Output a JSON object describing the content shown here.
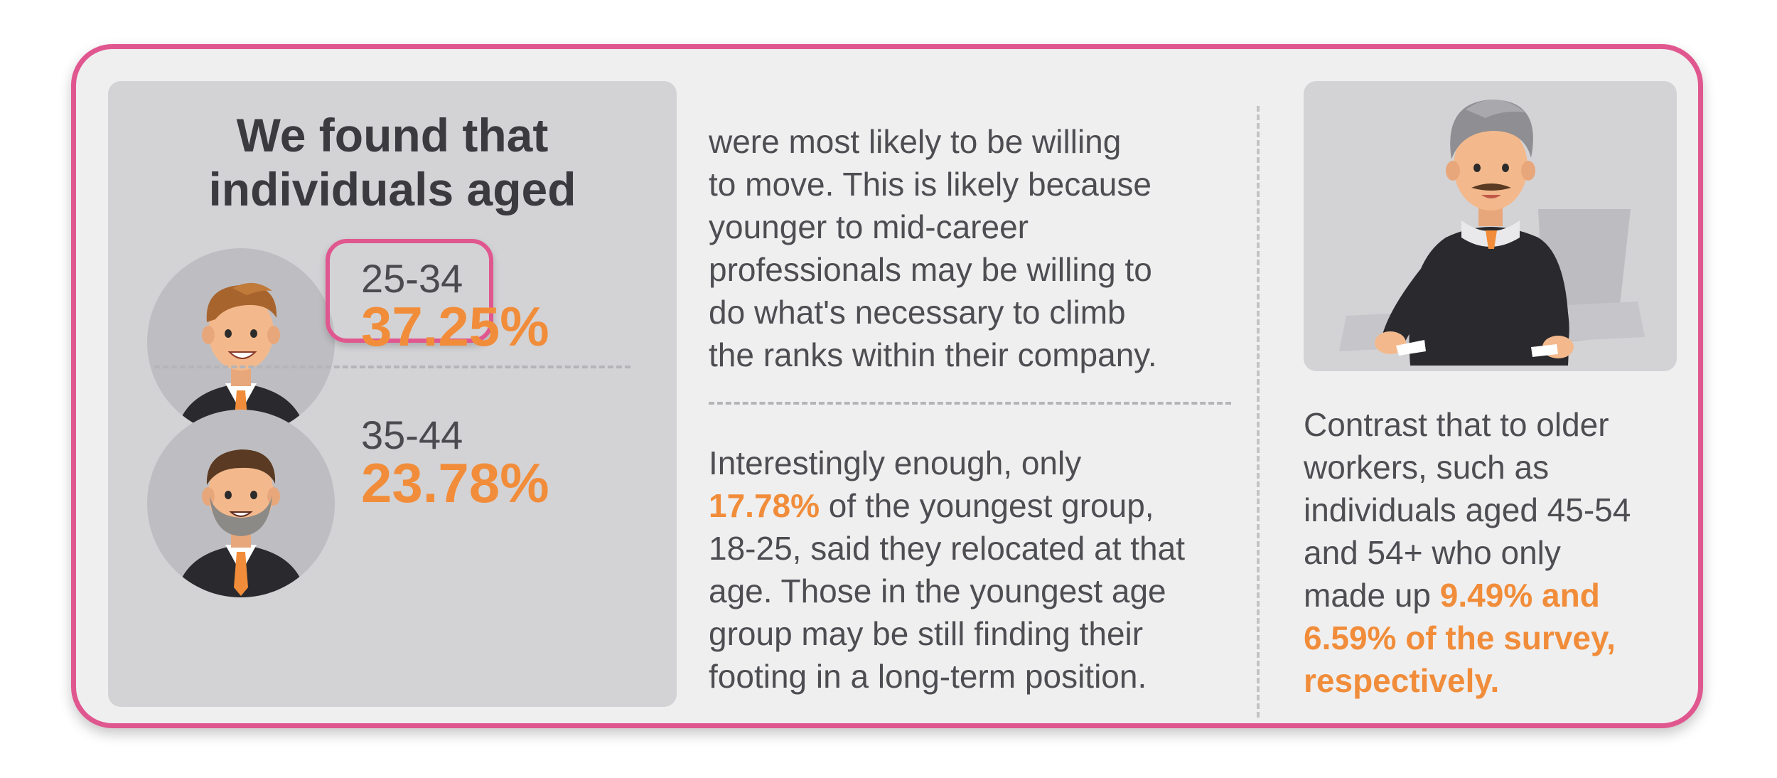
{
  "headline": {
    "line1": "We found that",
    "line2": "individuals aged"
  },
  "groups": [
    {
      "age": "25-34",
      "percent": "37.25%",
      "highlighted": true,
      "avatar_icon": "young-man-avatar"
    },
    {
      "age": "35-44",
      "percent": "23.78%",
      "highlighted": false,
      "avatar_icon": "bearded-man-avatar"
    }
  ],
  "middle": {
    "para1": [
      "were most likely to be willing",
      "to move. This is likely because",
      "younger to mid-career",
      "professionals may be willing to",
      "do what's necessary to climb",
      "the ranks within their company."
    ],
    "para2": {
      "line1": "Interestingly enough, only",
      "line2_highlight": "17.78%",
      "line2_rest": " of the youngest group,",
      "line3": "18-25, said they relocated at that",
      "line4": "age. Those in the youngest age",
      "line5": "group may be still finding their",
      "line6": "footing in a long-term position."
    }
  },
  "right": {
    "image_icon": "older-man-in-armchair",
    "line1": "Contrast that to older",
    "line2": "workers, such as",
    "line3": "individuals aged 45-54",
    "line4": "and 54+ who only",
    "line5_plain": "made up ",
    "line5_highlight": "9.49% and",
    "line6_highlight": "6.59% of the survey,",
    "line7_highlight": "respectively."
  },
  "colors": {
    "accent": "#f18d3a",
    "border": "#e0578f",
    "panel": "#d3d3d6",
    "card": "#efeff0"
  }
}
